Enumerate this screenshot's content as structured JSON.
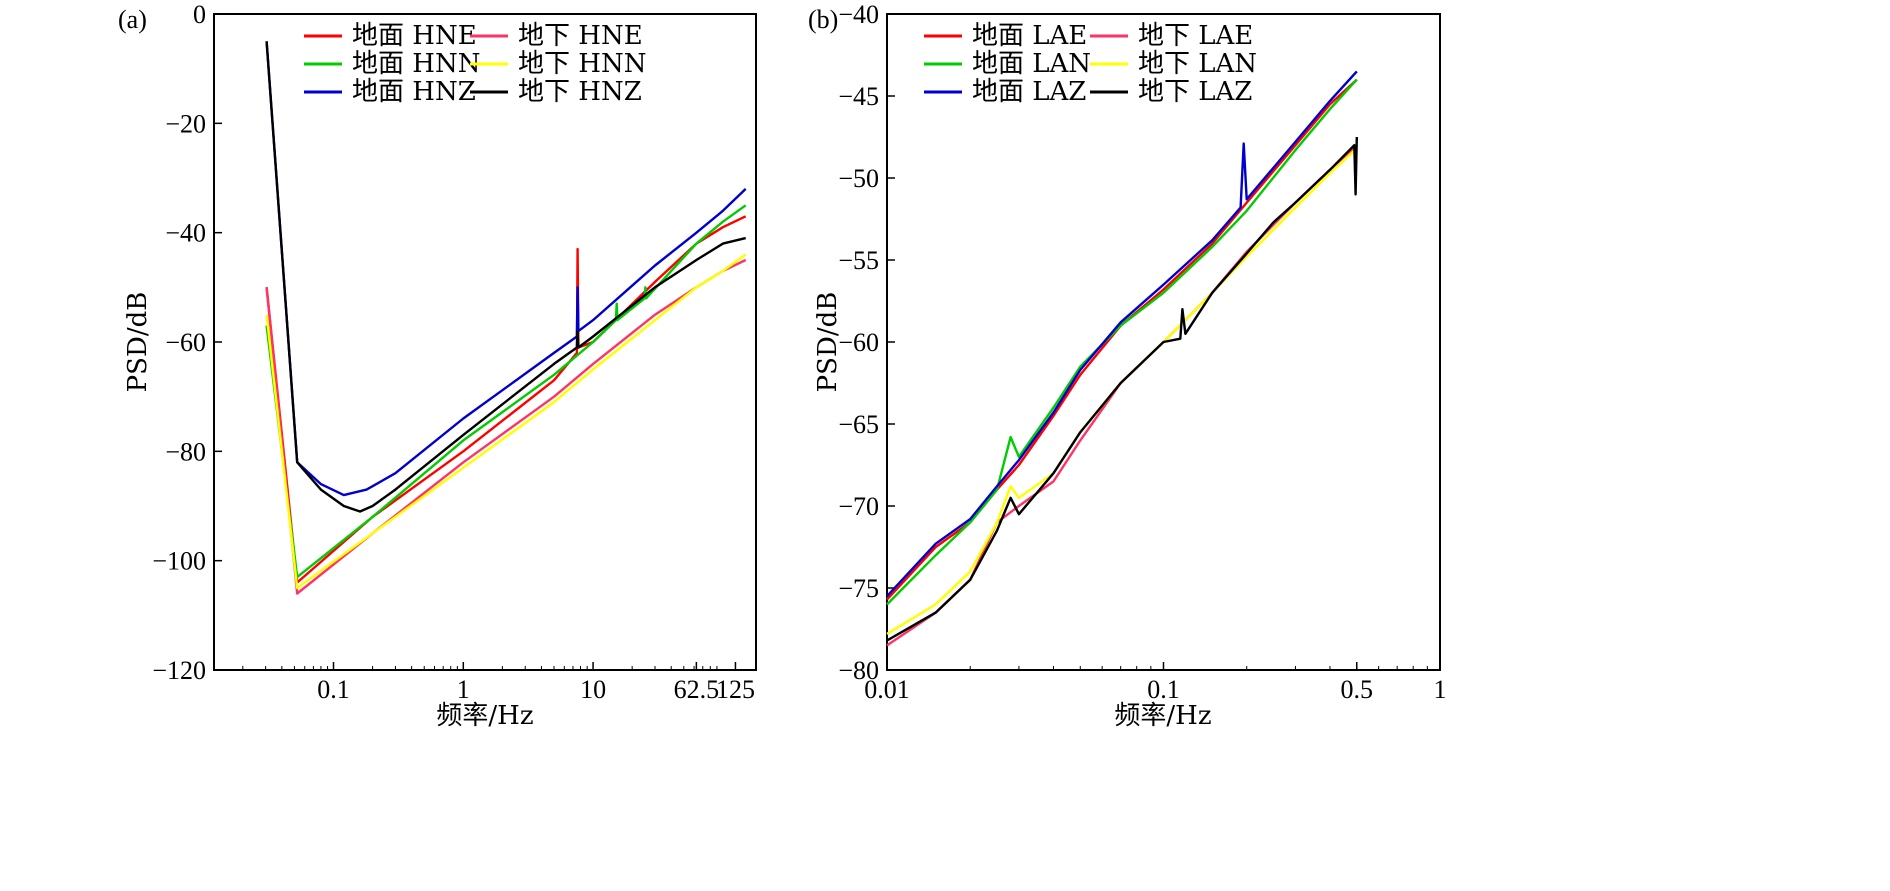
{
  "chart_data": [
    {
      "panel_label": "(a)",
      "type": "line",
      "xlabel": "频率/Hz",
      "ylabel": "PSD/dB",
      "xscale": "log",
      "xlim": [
        0.012,
        180
      ],
      "ylim": [
        -120,
        0
      ],
      "xticks": [
        {
          "value": 0.1,
          "label": "0.1"
        },
        {
          "value": 1,
          "label": "1"
        },
        {
          "value": 10,
          "label": "10"
        },
        {
          "value": 62.5,
          "label": "62.5"
        },
        {
          "value": 125,
          "label": "125"
        }
      ],
      "yticks": [
        {
          "value": 0,
          "label": "0"
        },
        {
          "value": -20,
          "label": "−20"
        },
        {
          "value": -40,
          "label": "−40"
        },
        {
          "value": -60,
          "label": "−60"
        },
        {
          "value": -80,
          "label": "−80"
        },
        {
          "value": -100,
          "label": "−100"
        },
        {
          "value": -120,
          "label": "−120"
        }
      ],
      "legend_position": "top",
      "series": [
        {
          "name": "地面 HNE",
          "color": "#ff0000",
          "points": [
            [
              0.0305,
              -50
            ],
            [
              0.0525,
              -104
            ],
            [
              0.2,
              -92
            ],
            [
              1,
              -80
            ],
            [
              5,
              -67
            ],
            [
              7.5,
              -62
            ],
            [
              7.6,
              -43
            ],
            [
              7.7,
              -61
            ],
            [
              10,
              -60
            ],
            [
              30,
              -49
            ],
            [
              62.5,
              -42
            ],
            [
              100,
              -39
            ],
            [
              150,
              -37
            ]
          ]
        },
        {
          "name": "地面 HNN",
          "color": "#00cc00",
          "points": [
            [
              0.0305,
              -57
            ],
            [
              0.0525,
              -103
            ],
            [
              0.2,
              -92
            ],
            [
              1,
              -78
            ],
            [
              5,
              -66
            ],
            [
              10,
              -60
            ],
            [
              15,
              -56
            ],
            [
              15.2,
              -53
            ],
            [
              15.4,
              -56
            ],
            [
              25,
              -52
            ],
            [
              25.3,
              -50
            ],
            [
              25.6,
              -52
            ],
            [
              62.5,
              -42
            ],
            [
              100,
              -38
            ],
            [
              150,
              -35
            ]
          ]
        },
        {
          "name": "地面 HNZ",
          "color": "#0000cc",
          "points": [
            [
              0.0305,
              -5
            ],
            [
              0.0525,
              -82
            ],
            [
              0.08,
              -86
            ],
            [
              0.12,
              -88
            ],
            [
              0.18,
              -87
            ],
            [
              0.3,
              -84
            ],
            [
              1,
              -74
            ],
            [
              5,
              -62
            ],
            [
              7.5,
              -59
            ],
            [
              7.6,
              -50
            ],
            [
              7.7,
              -58
            ],
            [
              10,
              -56
            ],
            [
              30,
              -46
            ],
            [
              62.5,
              -40
            ],
            [
              100,
              -36
            ],
            [
              150,
              -32
            ]
          ]
        },
        {
          "name": "地下 HNE",
          "color": "#ff3366",
          "points": [
            [
              0.0305,
              -50
            ],
            [
              0.0525,
              -106
            ],
            [
              0.2,
              -95
            ],
            [
              1,
              -82
            ],
            [
              5,
              -70
            ],
            [
              10,
              -64
            ],
            [
              30,
              -55
            ],
            [
              62.5,
              -50
            ],
            [
              100,
              -47
            ],
            [
              150,
              -45
            ]
          ]
        },
        {
          "name": "地下 HNN",
          "color": "#ffff00",
          "points": [
            [
              0.0305,
              -55
            ],
            [
              0.0525,
              -105
            ],
            [
              0.2,
              -95
            ],
            [
              1,
              -83
            ],
            [
              5,
              -71
            ],
            [
              10,
              -65
            ],
            [
              30,
              -56
            ],
            [
              62.5,
              -50
            ],
            [
              100,
              -47
            ],
            [
              150,
              -44
            ]
          ]
        },
        {
          "name": "地下 HNZ",
          "color": "#000000",
          "points": [
            [
              0.0305,
              -5
            ],
            [
              0.0525,
              -82
            ],
            [
              0.08,
              -87
            ],
            [
              0.12,
              -90
            ],
            [
              0.16,
              -91
            ],
            [
              0.2,
              -90
            ],
            [
              0.3,
              -87
            ],
            [
              1,
              -77
            ],
            [
              5,
              -64
            ],
            [
              7.5,
              -61
            ],
            [
              7.6,
              -58
            ],
            [
              7.7,
              -61
            ],
            [
              10,
              -59
            ],
            [
              30,
              -50
            ],
            [
              62.5,
              -45
            ],
            [
              100,
              -42
            ],
            [
              150,
              -41
            ]
          ]
        }
      ]
    },
    {
      "panel_label": "(b)",
      "type": "line",
      "xlabel": "频率/Hz",
      "ylabel": "PSD/dB",
      "xscale": "log",
      "xlim": [
        0.01,
        1
      ],
      "ylim": [
        -80,
        -40
      ],
      "xticks": [
        {
          "value": 0.01,
          "label": "0.01"
        },
        {
          "value": 0.1,
          "label": "0.1"
        },
        {
          "value": 0.5,
          "label": "0.5"
        },
        {
          "value": 1,
          "label": "1"
        }
      ],
      "yticks": [
        {
          "value": -40,
          "label": "−40"
        },
        {
          "value": -45,
          "label": "−45"
        },
        {
          "value": -50,
          "label": "−50"
        },
        {
          "value": -55,
          "label": "−55"
        },
        {
          "value": -60,
          "label": "−60"
        },
        {
          "value": -65,
          "label": "−65"
        },
        {
          "value": -70,
          "label": "−70"
        },
        {
          "value": -75,
          "label": "−75"
        },
        {
          "value": -80,
          "label": "−80"
        }
      ],
      "legend_position": "top-left",
      "series": [
        {
          "name": "地面 LAE",
          "color": "#ff0000",
          "points": [
            [
              0.01,
              -75.7
            ],
            [
              0.015,
              -72.5
            ],
            [
              0.02,
              -71
            ],
            [
              0.025,
              -69
            ],
            [
              0.03,
              -67.5
            ],
            [
              0.04,
              -64.5
            ],
            [
              0.05,
              -62
            ],
            [
              0.07,
              -59
            ],
            [
              0.1,
              -56.8
            ],
            [
              0.15,
              -54
            ],
            [
              0.2,
              -51.5
            ],
            [
              0.3,
              -48
            ],
            [
              0.4,
              -45.5
            ],
            [
              0.5,
              -44
            ]
          ]
        },
        {
          "name": "地面 LAN",
          "color": "#00cc00",
          "points": [
            [
              0.01,
              -76
            ],
            [
              0.015,
              -73
            ],
            [
              0.02,
              -71
            ],
            [
              0.025,
              -69
            ],
            [
              0.028,
              -65.8
            ],
            [
              0.03,
              -67
            ],
            [
              0.04,
              -64
            ],
            [
              0.05,
              -61.5
            ],
            [
              0.07,
              -59
            ],
            [
              0.1,
              -57
            ],
            [
              0.15,
              -54.2
            ],
            [
              0.2,
              -52
            ],
            [
              0.3,
              -48.3
            ],
            [
              0.4,
              -45.8
            ],
            [
              0.5,
              -44
            ]
          ]
        },
        {
          "name": "地面 LAZ",
          "color": "#0000cc",
          "points": [
            [
              0.01,
              -75.5
            ],
            [
              0.015,
              -72.3
            ],
            [
              0.02,
              -70.8
            ],
            [
              0.025,
              -68.8
            ],
            [
              0.03,
              -67.2
            ],
            [
              0.04,
              -64.3
            ],
            [
              0.05,
              -61.7
            ],
            [
              0.07,
              -58.8
            ],
            [
              0.1,
              -56.5
            ],
            [
              0.15,
              -53.8
            ],
            [
              0.19,
              -51.8
            ],
            [
              0.195,
              -47.9
            ],
            [
              0.2,
              -51.3
            ],
            [
              0.3,
              -47.8
            ],
            [
              0.4,
              -45.3
            ],
            [
              0.5,
              -43.5
            ]
          ]
        },
        {
          "name": "地下 LAE",
          "color": "#ff3366",
          "points": [
            [
              0.01,
              -78.5
            ],
            [
              0.015,
              -76.5
            ],
            [
              0.02,
              -74.5
            ],
            [
              0.025,
              -71
            ],
            [
              0.03,
              -70
            ],
            [
              0.04,
              -68.5
            ],
            [
              0.05,
              -66
            ],
            [
              0.07,
              -62.5
            ],
            [
              0.1,
              -60
            ],
            [
              0.15,
              -57
            ],
            [
              0.2,
              -54.5
            ],
            [
              0.3,
              -51.5
            ],
            [
              0.4,
              -49.5
            ],
            [
              0.5,
              -48
            ]
          ]
        },
        {
          "name": "地下 LAN",
          "color": "#ffff00",
          "points": [
            [
              0.01,
              -77.8
            ],
            [
              0.015,
              -76
            ],
            [
              0.02,
              -74
            ],
            [
              0.025,
              -71
            ],
            [
              0.028,
              -68.8
            ],
            [
              0.03,
              -69.5
            ],
            [
              0.04,
              -68
            ],
            [
              0.05,
              -65.5
            ],
            [
              0.07,
              -62.5
            ],
            [
              0.1,
              -60
            ],
            [
              0.15,
              -57
            ],
            [
              0.2,
              -54.8
            ],
            [
              0.3,
              -51.8
            ],
            [
              0.4,
              -49.7
            ],
            [
              0.5,
              -48.2
            ]
          ]
        },
        {
          "name": "地下 LAZ",
          "color": "#000000",
          "points": [
            [
              0.01,
              -78.2
            ],
            [
              0.015,
              -76.5
            ],
            [
              0.02,
              -74.5
            ],
            [
              0.025,
              -71.5
            ],
            [
              0.028,
              -69.5
            ],
            [
              0.03,
              -70.5
            ],
            [
              0.04,
              -68
            ],
            [
              0.05,
              -65.5
            ],
            [
              0.07,
              -62.5
            ],
            [
              0.1,
              -60
            ],
            [
              0.115,
              -59.8
            ],
            [
              0.117,
              -58
            ],
            [
              0.12,
              -59.5
            ],
            [
              0.15,
              -57
            ],
            [
              0.2,
              -54.6
            ],
            [
              0.25,
              -52.7
            ],
            [
              0.3,
              -51.5
            ],
            [
              0.4,
              -49.5
            ],
            [
              0.49,
              -48
            ],
            [
              0.495,
              -51
            ],
            [
              0.5,
              -47.5
            ]
          ]
        }
      ]
    }
  ]
}
